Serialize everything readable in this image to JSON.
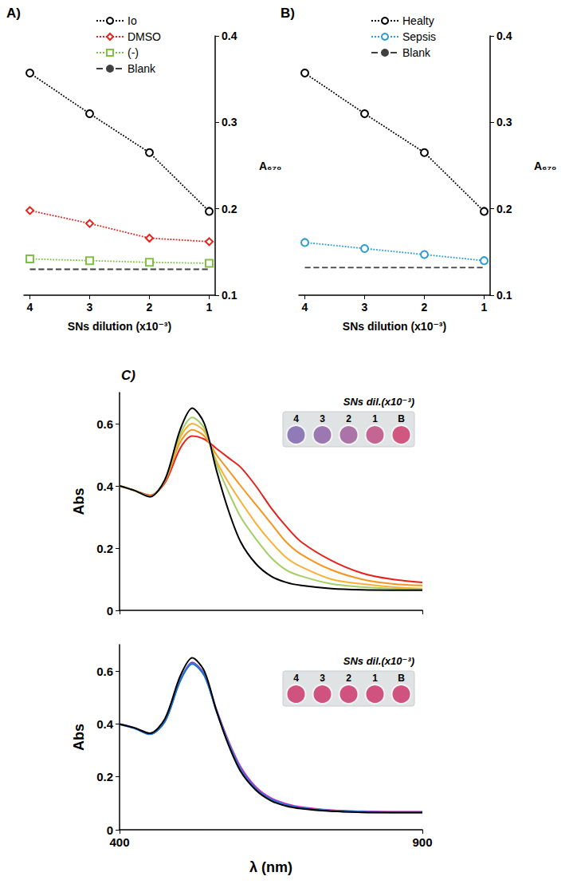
{
  "chart_data": [
    {
      "panel": "A)",
      "type": "line",
      "x_label": "SNs dilution (x10⁻³)",
      "y_label": "A₆₇₀",
      "x": [
        4,
        3,
        2,
        1
      ],
      "xlim": [
        4.1,
        0.9
      ],
      "xticks": [
        4,
        3,
        2,
        1
      ],
      "ylim": [
        0.1,
        0.4
      ],
      "yticks": [
        0.1,
        0.2,
        0.3,
        0.4
      ],
      "grid": false,
      "legend": "top",
      "series": [
        {
          "name": "Io",
          "color": "#000000",
          "marker": "emptyCircle",
          "line_style": "dotted",
          "values": [
            0.357,
            0.31,
            0.265,
            0.197
          ]
        },
        {
          "name": "DMSO",
          "color": "#e8221b",
          "marker": "emptyDiamond",
          "line_style": "dotted",
          "values": [
            0.198,
            0.183,
            0.166,
            0.162
          ]
        },
        {
          "name": "(-)",
          "color": "#7dc242",
          "marker": "emptyRect",
          "line_style": "dotted",
          "values": [
            0.142,
            0.14,
            0.138,
            0.137
          ]
        },
        {
          "name": "Blank",
          "color": "#404040",
          "marker": "none",
          "line_style": "dashed",
          "values": [
            0.13,
            0.13,
            0.13,
            0.13
          ]
        }
      ]
    },
    {
      "panel": "B)",
      "type": "line",
      "x_label": "SNs dilution (x10⁻³)",
      "y_label": "A₆₇₀",
      "x": [
        4,
        3,
        2,
        1
      ],
      "xlim": [
        4.1,
        0.9
      ],
      "xticks": [
        4,
        3,
        2,
        1
      ],
      "ylim": [
        0.1,
        0.4
      ],
      "yticks": [
        0.1,
        0.2,
        0.3,
        0.4
      ],
      "grid": false,
      "legend": "top",
      "series": [
        {
          "name": "Healty",
          "color": "#000000",
          "marker": "emptyCircle",
          "line_style": "dotted",
          "values": [
            0.357,
            0.31,
            0.265,
            0.197
          ]
        },
        {
          "name": "Sepsis",
          "color": "#2e9bd6",
          "marker": "emptyCircle",
          "line_style": "dotted",
          "values": [
            0.161,
            0.154,
            0.147,
            0.14
          ]
        },
        {
          "name": "Blank",
          "color": "#404040",
          "marker": "none",
          "line_style": "dashed",
          "values": [
            0.132,
            0.132,
            0.132,
            0.132
          ]
        }
      ]
    },
    {
      "panel": "C)",
      "type": "line",
      "y_label": "Abs",
      "tick_labels": "y",
      "x": [
        400,
        425,
        450,
        475,
        500,
        520,
        540,
        560,
        580,
        600,
        625,
        650,
        675,
        700,
        750,
        800,
        850,
        900
      ],
      "xlim": [
        400,
        900
      ],
      "xticks": [
        400,
        900
      ],
      "ylim": [
        0,
        0.7
      ],
      "yticks": [
        0,
        0.2,
        0.4,
        0.6
      ],
      "grid": false,
      "inset": {
        "title": "SNs dil.(x10⁻³)",
        "labels": [
          "4",
          "3",
          "2",
          "1",
          "B"
        ],
        "colors": [
          "#8f7bb8",
          "#9c78b2",
          "#ab74a8",
          "#c46592",
          "#d0577f"
        ]
      },
      "series": [
        {
          "color": "#e8211c",
          "line_style": "solid",
          "values": [
            0.4,
            0.385,
            0.37,
            0.41,
            0.52,
            0.56,
            0.55,
            0.52,
            0.49,
            0.46,
            0.4,
            0.33,
            0.27,
            0.22,
            0.16,
            0.12,
            0.1,
            0.09
          ]
        },
        {
          "color": "#f7941d",
          "line_style": "solid",
          "values": [
            0.4,
            0.385,
            0.368,
            0.415,
            0.54,
            0.58,
            0.56,
            0.5,
            0.45,
            0.4,
            0.34,
            0.28,
            0.22,
            0.18,
            0.13,
            0.1,
            0.085,
            0.08
          ]
        },
        {
          "color": "#fbb034",
          "line_style": "solid",
          "values": [
            0.4,
            0.385,
            0.367,
            0.418,
            0.555,
            0.6,
            0.575,
            0.48,
            0.41,
            0.35,
            0.28,
            0.22,
            0.17,
            0.14,
            0.1,
            0.085,
            0.075,
            0.07
          ]
        },
        {
          "color": "#a3cf62",
          "line_style": "solid",
          "values": [
            0.4,
            0.385,
            0.366,
            0.42,
            0.565,
            0.62,
            0.585,
            0.47,
            0.38,
            0.3,
            0.23,
            0.17,
            0.13,
            0.11,
            0.085,
            0.075,
            0.07,
            0.068
          ]
        },
        {
          "color": "#000000",
          "line_style": "solid",
          "values": [
            0.4,
            0.385,
            0.365,
            0.42,
            0.58,
            0.65,
            0.6,
            0.45,
            0.32,
            0.22,
            0.15,
            0.11,
            0.09,
            0.08,
            0.07,
            0.066,
            0.065,
            0.065
          ]
        }
      ]
    },
    {
      "type": "line",
      "x_label": "λ (nm)",
      "y_label": "Abs",
      "x": [
        400,
        425,
        450,
        475,
        500,
        520,
        540,
        560,
        580,
        600,
        625,
        650,
        675,
        700,
        750,
        800,
        850,
        900
      ],
      "xlim": [
        400,
        900
      ],
      "xticks": [
        400,
        900
      ],
      "ylim": [
        0,
        0.7
      ],
      "yticks": [
        0,
        0.2,
        0.4,
        0.6
      ],
      "grid": false,
      "inset": {
        "title": "SNs dil.(x10⁻³)",
        "labels": [
          "4",
          "3",
          "2",
          "1",
          "B"
        ],
        "colors": [
          "#d0527e",
          "#d0527e",
          "#d0527e",
          "#d0527e",
          "#d0527e"
        ]
      },
      "series": [
        {
          "color": "#e040c8",
          "line_style": "solid",
          "values": [
            0.4,
            0.385,
            0.363,
            0.412,
            0.565,
            0.632,
            0.588,
            0.455,
            0.335,
            0.238,
            0.162,
            0.12,
            0.098,
            0.086,
            0.074,
            0.07,
            0.068,
            0.068
          ]
        },
        {
          "color": "#7b2fbf",
          "line_style": "solid",
          "values": [
            0.4,
            0.385,
            0.363,
            0.411,
            0.565,
            0.632,
            0.586,
            0.452,
            0.33,
            0.232,
            0.158,
            0.117,
            0.096,
            0.084,
            0.073,
            0.069,
            0.067,
            0.067
          ]
        },
        {
          "color": "#33bbee",
          "line_style": "solid",
          "values": [
            0.4,
            0.384,
            0.362,
            0.41,
            0.563,
            0.628,
            0.584,
            0.45,
            0.327,
            0.228,
            0.155,
            0.115,
            0.094,
            0.082,
            0.072,
            0.068,
            0.066,
            0.066
          ]
        },
        {
          "color": "#1f6fd1",
          "line_style": "solid",
          "values": [
            0.398,
            0.383,
            0.361,
            0.409,
            0.562,
            0.627,
            0.583,
            0.448,
            0.325,
            0.226,
            0.154,
            0.114,
            0.093,
            0.082,
            0.071,
            0.067,
            0.066,
            0.066
          ]
        },
        {
          "color": "#000000",
          "line_style": "solid",
          "values": [
            0.4,
            0.385,
            0.365,
            0.42,
            0.58,
            0.65,
            0.6,
            0.45,
            0.32,
            0.22,
            0.15,
            0.11,
            0.09,
            0.08,
            0.07,
            0.066,
            0.065,
            0.065
          ]
        }
      ]
    }
  ]
}
